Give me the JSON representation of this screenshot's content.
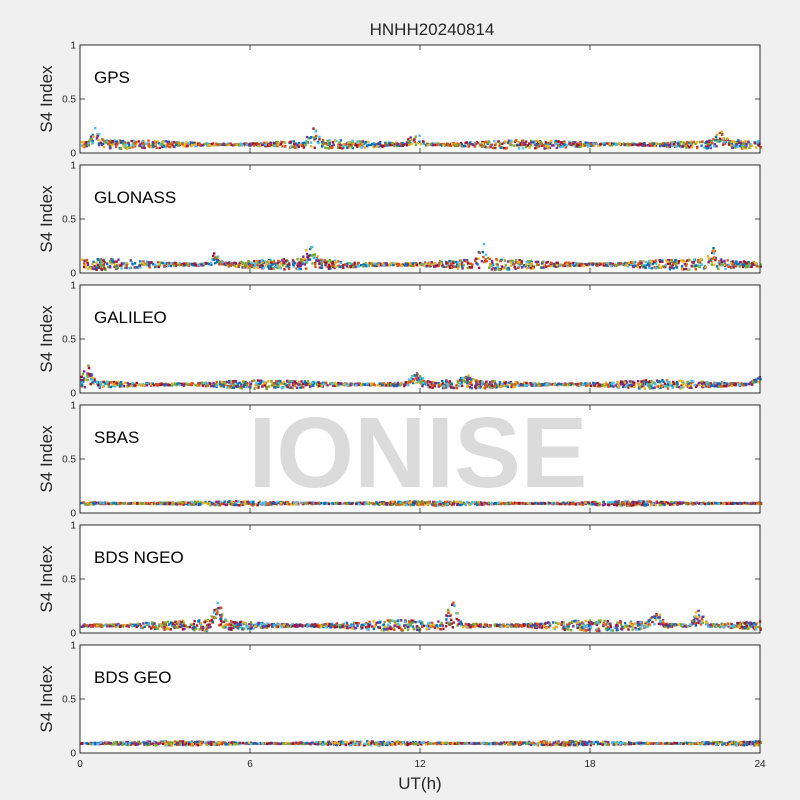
{
  "watermark": "IONISE",
  "chart_data": {
    "type": "scatter",
    "title": "HNHH20240814",
    "xlabel": "UT(h)",
    "ylabel": "S4 Index",
    "xlim": [
      0,
      24
    ],
    "ylim": [
      0,
      1
    ],
    "xticks": [
      "0",
      "6",
      "12",
      "18",
      "24"
    ],
    "yticks": [
      "0",
      "0.5",
      "1"
    ],
    "colors": [
      "#0072BD",
      "#D95319",
      "#EDB120",
      "#7E2F8E",
      "#77AC30",
      "#4DBEEE",
      "#A2142F"
    ],
    "panels": [
      {
        "label": "GPS",
        "baseline": 0.09,
        "spread": 0.04,
        "peaks": [
          [
            8.2,
            0.24
          ],
          [
            11.8,
            0.23
          ],
          [
            22.6,
            0.22
          ],
          [
            0.5,
            0.22
          ]
        ]
      },
      {
        "label": "GLONASS",
        "baseline": 0.09,
        "spread": 0.05,
        "peaks": [
          [
            14.2,
            0.3
          ],
          [
            8.1,
            0.26
          ],
          [
            22.3,
            0.22
          ],
          [
            4.7,
            0.2
          ]
        ]
      },
      {
        "label": "GALILEO",
        "baseline": 0.09,
        "spread": 0.04,
        "peaks": [
          [
            0.2,
            0.27
          ],
          [
            11.8,
            0.21
          ],
          [
            13.6,
            0.18
          ],
          [
            23.9,
            0.17
          ]
        ]
      },
      {
        "label": "SBAS",
        "baseline": 0.1,
        "spread": 0.02,
        "peaks": []
      },
      {
        "label": "BDS NGEO",
        "baseline": 0.08,
        "spread": 0.05,
        "peaks": [
          [
            4.8,
            0.3
          ],
          [
            13.1,
            0.31
          ],
          [
            21.8,
            0.24
          ],
          [
            20.3,
            0.22
          ]
        ]
      },
      {
        "label": "BDS GEO",
        "baseline": 0.1,
        "spread": 0.02,
        "peaks": []
      }
    ]
  }
}
